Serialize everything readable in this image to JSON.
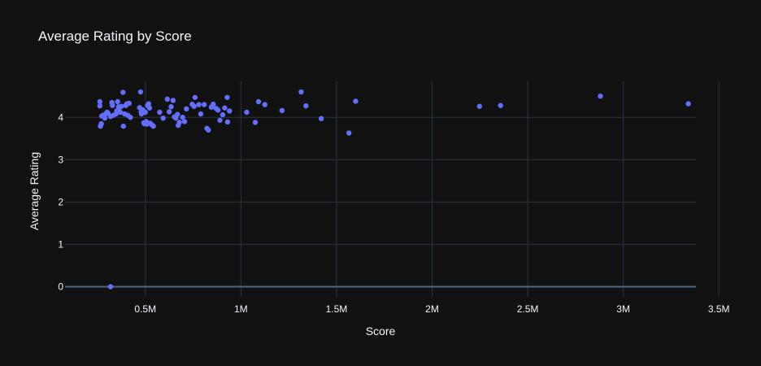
{
  "chart_data": {
    "type": "scatter",
    "title": "Average Rating by Score",
    "xlabel": "Score",
    "ylabel": "Average Rating",
    "xlim": [
      80000,
      3380000
    ],
    "ylim": [
      -0.24,
      4.85
    ],
    "xticks": [
      {
        "value": 500000,
        "label": "0.5M"
      },
      {
        "value": 1000000,
        "label": "1M"
      },
      {
        "value": 1500000,
        "label": "1.5M"
      },
      {
        "value": 2000000,
        "label": "2M"
      },
      {
        "value": 2500000,
        "label": "2.5M"
      },
      {
        "value": 3000000,
        "label": "3M"
      },
      {
        "value": 3500000,
        "label": "3.5M"
      }
    ],
    "yticks": [
      {
        "value": 0,
        "label": "0"
      },
      {
        "value": 1,
        "label": "1"
      },
      {
        "value": 2,
        "label": "2"
      },
      {
        "value": 3,
        "label": "3"
      },
      {
        "value": 4,
        "label": "4"
      }
    ],
    "grid": true,
    "marker_color": "#636efa",
    "points": [
      [
        262000,
        4.37
      ],
      [
        262000,
        4.27
      ],
      [
        265000,
        3.79
      ],
      [
        270000,
        3.85
      ],
      [
        272000,
        4.03
      ],
      [
        280000,
        4.05
      ],
      [
        288000,
        3.98
      ],
      [
        292000,
        4.08
      ],
      [
        300000,
        4.12
      ],
      [
        305000,
        4.1
      ],
      [
        318000,
        0.0
      ],
      [
        318000,
        4.02
      ],
      [
        325000,
        4.35
      ],
      [
        328000,
        4.28
      ],
      [
        333000,
        4.05
      ],
      [
        346000,
        4.08
      ],
      [
        350000,
        4.15
      ],
      [
        355000,
        4.37
      ],
      [
        360000,
        4.25
      ],
      [
        362000,
        4.21
      ],
      [
        370000,
        4.12
      ],
      [
        375000,
        4.26
      ],
      [
        383000,
        4.59
      ],
      [
        385000,
        3.79
      ],
      [
        392000,
        4.08
      ],
      [
        398000,
        4.28
      ],
      [
        403000,
        4.32
      ],
      [
        408000,
        4.05
      ],
      [
        415000,
        4.33
      ],
      [
        422000,
        4.0
      ],
      [
        470000,
        4.23
      ],
      [
        475000,
        4.6
      ],
      [
        478000,
        4.12
      ],
      [
        480000,
        4.08
      ],
      [
        485000,
        4.18
      ],
      [
        492000,
        3.87
      ],
      [
        495000,
        3.85
      ],
      [
        500000,
        4.12
      ],
      [
        505000,
        3.9
      ],
      [
        508000,
        3.84
      ],
      [
        512000,
        4.28
      ],
      [
        517000,
        4.32
      ],
      [
        522000,
        4.22
      ],
      [
        525000,
        3.86
      ],
      [
        535000,
        3.82
      ],
      [
        542000,
        3.79
      ],
      [
        575000,
        4.12
      ],
      [
        593000,
        3.98
      ],
      [
        615000,
        4.43
      ],
      [
        625000,
        4.13
      ],
      [
        635000,
        4.25
      ],
      [
        645000,
        4.4
      ],
      [
        652000,
        4.01
      ],
      [
        660000,
        3.98
      ],
      [
        668000,
        4.07
      ],
      [
        672000,
        3.81
      ],
      [
        678000,
        3.88
      ],
      [
        695000,
        4.0
      ],
      [
        705000,
        3.9
      ],
      [
        715000,
        4.2
      ],
      [
        745000,
        4.31
      ],
      [
        755000,
        4.26
      ],
      [
        760000,
        4.47
      ],
      [
        780000,
        4.3
      ],
      [
        790000,
        4.08
      ],
      [
        808000,
        4.3
      ],
      [
        822000,
        3.74
      ],
      [
        830000,
        3.7
      ],
      [
        845000,
        4.24
      ],
      [
        855000,
        4.31
      ],
      [
        870000,
        4.21
      ],
      [
        880000,
        4.17
      ],
      [
        890000,
        3.93
      ],
      [
        905000,
        4.06
      ],
      [
        915000,
        4.22
      ],
      [
        928000,
        4.47
      ],
      [
        930000,
        3.89
      ],
      [
        940000,
        4.15
      ],
      [
        1030000,
        4.12
      ],
      [
        1075000,
        3.88
      ],
      [
        1092000,
        4.37
      ],
      [
        1125000,
        4.3
      ],
      [
        1215000,
        4.16
      ],
      [
        1315000,
        4.6
      ],
      [
        1340000,
        4.27
      ],
      [
        1420000,
        3.97
      ],
      [
        1565000,
        3.63
      ],
      [
        1600000,
        4.38
      ],
      [
        2248000,
        4.26
      ],
      [
        2358000,
        4.28
      ],
      [
        2880000,
        4.5
      ],
      [
        3340000,
        4.32
      ]
    ]
  }
}
